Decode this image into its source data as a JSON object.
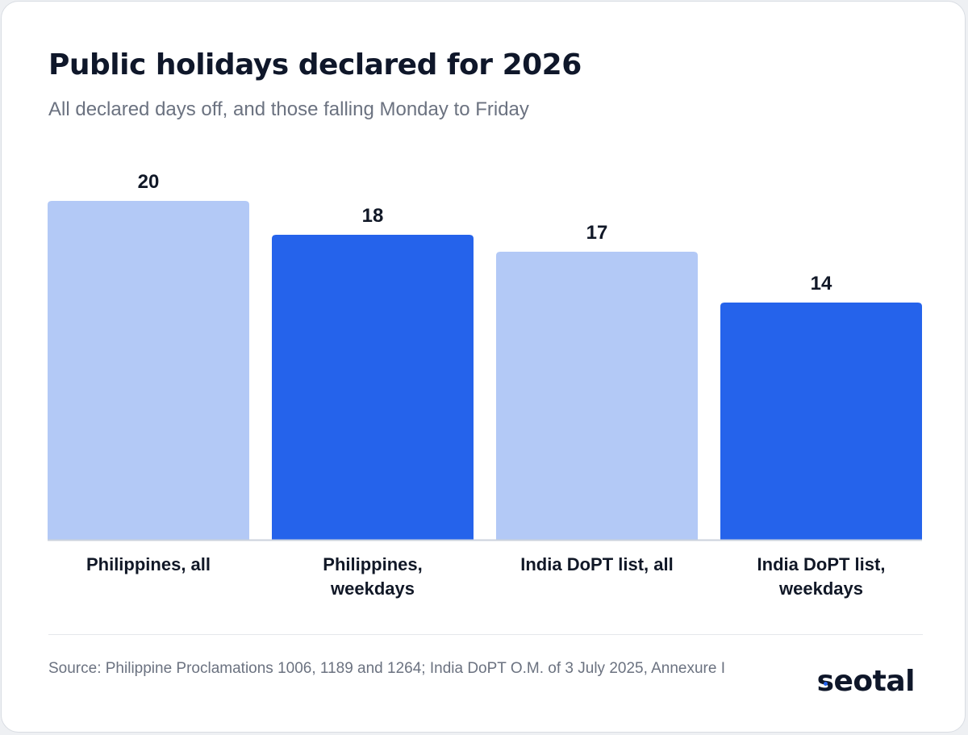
{
  "colors": {
    "all": "#b3c9f6",
    "weekdays": "#2563eb",
    "baseline": "#cbd2dc"
  },
  "chart_data": {
    "type": "bar",
    "title": "Public holidays declared for 2026",
    "subtitle": "All declared days off, and those falling Monday to Friday",
    "categories": [
      [
        "Philippines, all"
      ],
      [
        "Philippines,",
        "weekdays"
      ],
      [
        "India DoPT list, all"
      ],
      [
        "India DoPT list,",
        "weekdays"
      ]
    ],
    "values": [
      20,
      18,
      17,
      14
    ],
    "bar_colors": [
      "#b3c9f6",
      "#2563eb",
      "#b3c9f6",
      "#2563eb"
    ],
    "ylim": [
      0,
      20
    ],
    "grid": false,
    "legend": "none"
  },
  "footer": {
    "source": "Source: Philippine Proclamations 1006, 1189 and 1264; India DoPT O.M. of 3 July 2025, Annexure I",
    "logo_text": "seotal"
  }
}
